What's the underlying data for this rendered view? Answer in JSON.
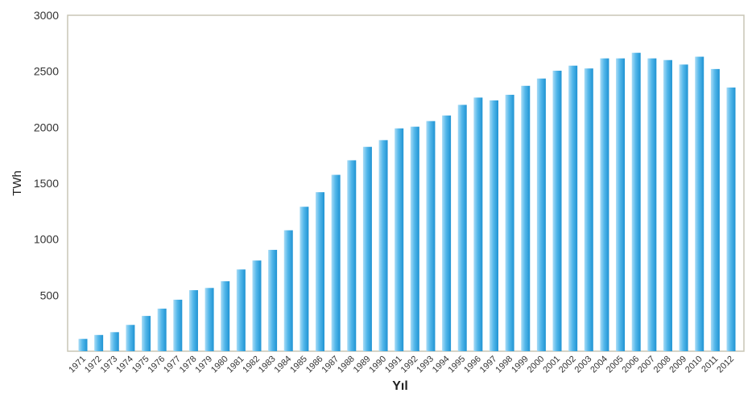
{
  "chart_data": {
    "type": "bar",
    "xlabel": "Yıl",
    "ylabel": "TWh",
    "ylim": [
      0,
      3000
    ],
    "yticks": [
      500,
      1000,
      1500,
      2000,
      2500,
      3000
    ],
    "grid": false,
    "bar_color": "#3aa6e0",
    "categories": [
      "1971",
      "1972",
      "1973",
      "1974",
      "1975",
      "1976",
      "1977",
      "1978",
      "1979",
      "1980",
      "1981",
      "1982",
      "1983",
      "1984",
      "1985",
      "1986",
      "1987",
      "1988",
      "1989",
      "1990",
      "1991",
      "1992",
      "1993",
      "1994",
      "1995",
      "1996",
      "1997",
      "1998",
      "1999",
      "2000",
      "2001",
      "2002",
      "2003",
      "2004",
      "2005",
      "2006",
      "2007",
      "2008",
      "2009",
      "2010",
      "2011",
      "2012"
    ],
    "values": [
      110,
      145,
      170,
      235,
      315,
      380,
      460,
      545,
      565,
      625,
      730,
      810,
      905,
      1080,
      1290,
      1420,
      1575,
      1705,
      1825,
      1885,
      1990,
      2005,
      2055,
      2105,
      2200,
      2265,
      2240,
      2290,
      2370,
      2435,
      2505,
      2550,
      2525,
      2615,
      2615,
      2665,
      2615,
      2600,
      2560,
      2630,
      2520,
      2355
    ]
  }
}
